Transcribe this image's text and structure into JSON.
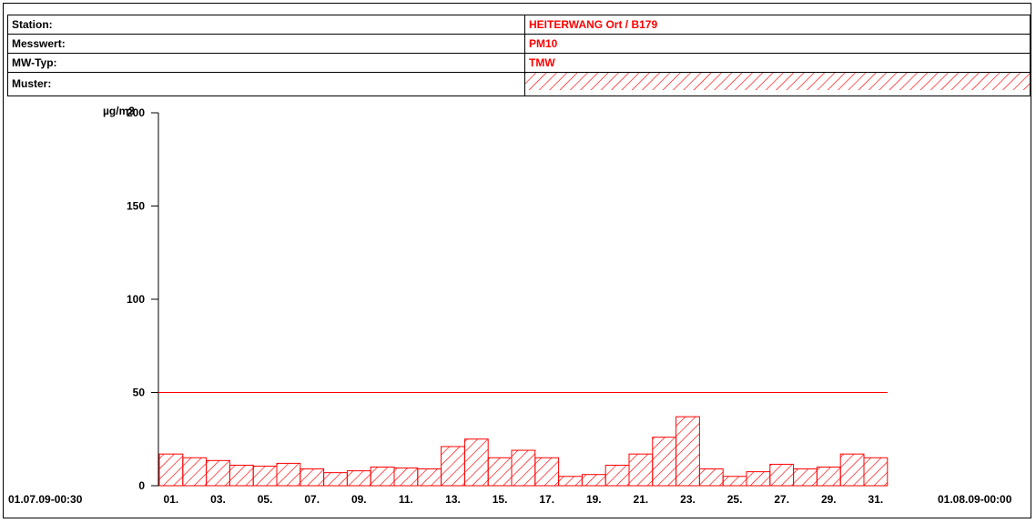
{
  "info": {
    "rows": [
      {
        "label": "Station:",
        "value": "HEITERWANG Ort / B179"
      },
      {
        "label": "Messwert:",
        "value": "PM10"
      },
      {
        "label": "MW-Typ:",
        "value": "TMW"
      },
      {
        "label": "Muster:",
        "value": ""
      }
    ]
  },
  "colors": {
    "accent": "#ff0000",
    "axis": "#000000"
  },
  "chart_data": {
    "type": "bar",
    "ylabel": "µg/m3",
    "ylim": [
      0,
      200
    ],
    "yticks": [
      0,
      50,
      100,
      150,
      200
    ],
    "limit_line": 50,
    "x_start_label": "01.07.09-00:30",
    "x_end_label": "01.08.09-00:00",
    "xtick_labels": [
      "01.",
      "03.",
      "05.",
      "07.",
      "09.",
      "11.",
      "13.",
      "15.",
      "17.",
      "19.",
      "21.",
      "23.",
      "25.",
      "27.",
      "29.",
      "31."
    ],
    "categories": [
      "01",
      "02",
      "03",
      "04",
      "05",
      "06",
      "07",
      "08",
      "09",
      "10",
      "11",
      "12",
      "13",
      "14",
      "15",
      "16",
      "17",
      "18",
      "19",
      "20",
      "21",
      "22",
      "23",
      "24",
      "25",
      "26",
      "27",
      "28",
      "29",
      "30",
      "31"
    ],
    "values": [
      17,
      15,
      13.5,
      11,
      10.5,
      12,
      9,
      7,
      8,
      10,
      9.5,
      9,
      21,
      25,
      15,
      19,
      15,
      5,
      6,
      11,
      17,
      26,
      37,
      9,
      5,
      7.5,
      11.5,
      9,
      10,
      17,
      15
    ],
    "pattern": "red diagonal hatch",
    "grid": false
  }
}
